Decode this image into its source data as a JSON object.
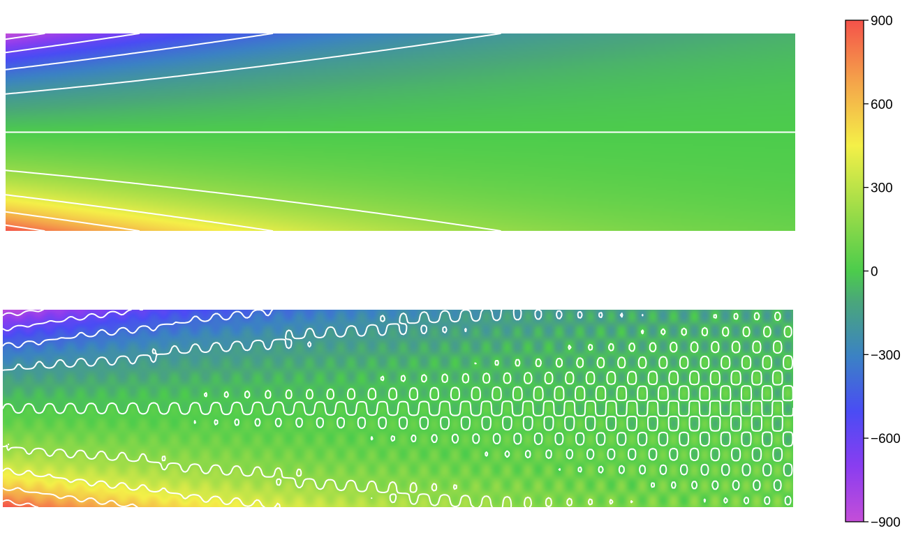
{
  "chart_data": [
    {
      "type": "heatmap",
      "field": "smooth",
      "title": "",
      "xlabel": "",
      "ylabel": "",
      "colormap": "rainbow",
      "value_range": [
        -900,
        900
      ],
      "contour_levels": [
        -800,
        -600,
        -400,
        -200,
        0,
        200,
        400,
        600,
        800
      ],
      "contour_color": "#ffffff",
      "pattern": "value is most negative at top-left and most positive at bottom-left, decaying to 0 toward the right; zero contour along the horizontal centerline"
    },
    {
      "type": "heatmap",
      "field": "oscillatory",
      "title": "",
      "xlabel": "",
      "ylabel": "",
      "colormap": "rainbow",
      "value_range": [
        -900,
        900
      ],
      "contour_levels": [
        -800,
        -600,
        -400,
        -200,
        0,
        200,
        400,
        600,
        800
      ],
      "contour_color": "#ffffff",
      "pattern": "same field as the upper panel with a superimposed short-wavelength ripple; contours become wavy and break into small closed loops toward the right edge"
    }
  ],
  "colorbar": {
    "min": -900,
    "max": 900,
    "ticks": [
      {
        "value": 900,
        "label": "900"
      },
      {
        "value": 600,
        "label": "600"
      },
      {
        "value": 300,
        "label": "300"
      },
      {
        "value": 0,
        "label": "0"
      },
      {
        "value": -300,
        "label": "−300"
      },
      {
        "value": -600,
        "label": "−600"
      },
      {
        "value": -900,
        "label": "−900"
      }
    ],
    "colors": [
      "#c44ed8",
      "#8a3df0",
      "#4a4cf4",
      "#3b82c4",
      "#4aa77a",
      "#4ccc4c",
      "#9cdc48",
      "#f4f048",
      "#f4a24a",
      "#f4524a"
    ]
  }
}
